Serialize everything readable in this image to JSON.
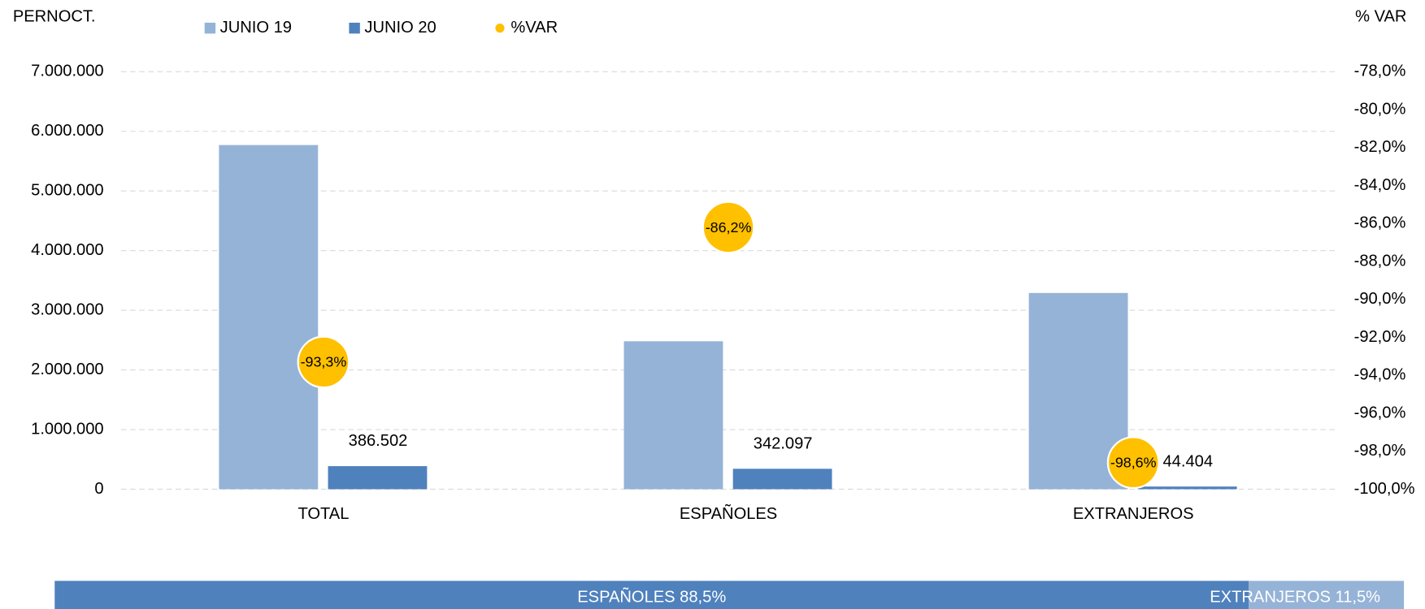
{
  "chart_data": [
    {
      "type": "bar",
      "y_label": "PERNOCT.",
      "y2_label": "% VAR",
      "categories": [
        "TOTAL",
        "ESPAÑOLES",
        "EXTRANJEROS"
      ],
      "series": [
        {
          "name": "JUNIO 19",
          "color": "#95b3d7",
          "values": [
            5770000,
            2480000,
            3290000
          ]
        },
        {
          "name": "JUNIO 20",
          "color": "#4f81bd",
          "values": [
            386502,
            342097,
            44404
          ],
          "value_labels": [
            "386.502",
            "342.097",
            "44.404"
          ]
        },
        {
          "name": "%VAR",
          "color": "#ffc000",
          "axis": "y2",
          "values": [
            -93.3,
            -86.2,
            -98.6
          ],
          "value_labels": [
            "-93,3%",
            "-86,2%",
            "-98,6%"
          ]
        }
      ],
      "ylim": [
        0,
        7000000
      ],
      "yticks": [
        0,
        {
          "value": 1000000,
          "label": "1.000.000"
        },
        {
          "value": 2000000,
          "label": "2.000.000"
        },
        {
          "value": 3000000,
          "label": "3.000.000"
        },
        {
          "value": 4000000,
          "label": "4.000.000"
        },
        {
          "value": 5000000,
          "label": "5.000.000"
        },
        {
          "value": 6000000,
          "label": "6.000.000"
        },
        {
          "value": 7000000,
          "label": "7.000.000"
        }
      ],
      "y2lim": [
        -100,
        -78
      ],
      "y2ticks": [
        {
          "value": -100,
          "label": "-100,0%"
        },
        {
          "value": -98,
          "label": "-98,0%"
        },
        {
          "value": -96,
          "label": "-96,0%"
        },
        {
          "value": -94,
          "label": "-94,0%"
        },
        {
          "value": -92,
          "label": "-92,0%"
        },
        {
          "value": -90,
          "label": "-90,0%"
        },
        {
          "value": -88,
          "label": "-88,0%"
        },
        {
          "value": -86,
          "label": "-86,0%"
        },
        {
          "value": -84,
          "label": "-84,0%"
        },
        {
          "value": -82,
          "label": "-82,0%"
        },
        {
          "value": -80,
          "label": "-80,0%"
        },
        {
          "value": -78,
          "label": "-78,0%"
        }
      ],
      "grid": true
    },
    {
      "type": "stacked_bar_100",
      "categories": [
        "ESPAÑOLES",
        "EXTRANJEROS"
      ],
      "values": [
        88.5,
        11.5
      ],
      "value_labels": [
        "88,5%",
        "11,5%"
      ],
      "colors": [
        "#4f81bd",
        "#95b3d7"
      ]
    }
  ]
}
